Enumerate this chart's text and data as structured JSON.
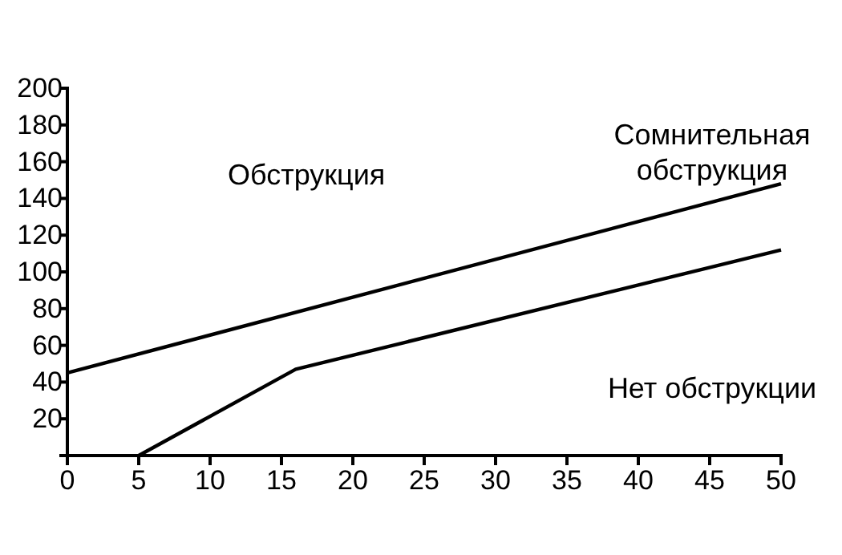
{
  "chart_data": {
    "type": "line",
    "series": [
      {
        "color": "#000000",
        "x": [
          0,
          50
        ],
        "values": [
          45,
          148
        ]
      },
      {
        "color": "#000000",
        "x": [
          5,
          16,
          50
        ],
        "values": [
          0,
          47,
          112
        ]
      }
    ],
    "xlim": [
      0,
      50
    ],
    "xticks": [
      0,
      5,
      10,
      15,
      20,
      25,
      30,
      35,
      40,
      45,
      50
    ],
    "ylim": [
      0,
      200
    ],
    "yticks": [
      20,
      40,
      60,
      80,
      100,
      120,
      140,
      160,
      180,
      200
    ],
    "grid": false,
    "marker": "none",
    "line_style": "solid",
    "annotations": [
      "Обструкция",
      "Сомнительная\nобструкция",
      "Нет обструкции"
    ]
  }
}
